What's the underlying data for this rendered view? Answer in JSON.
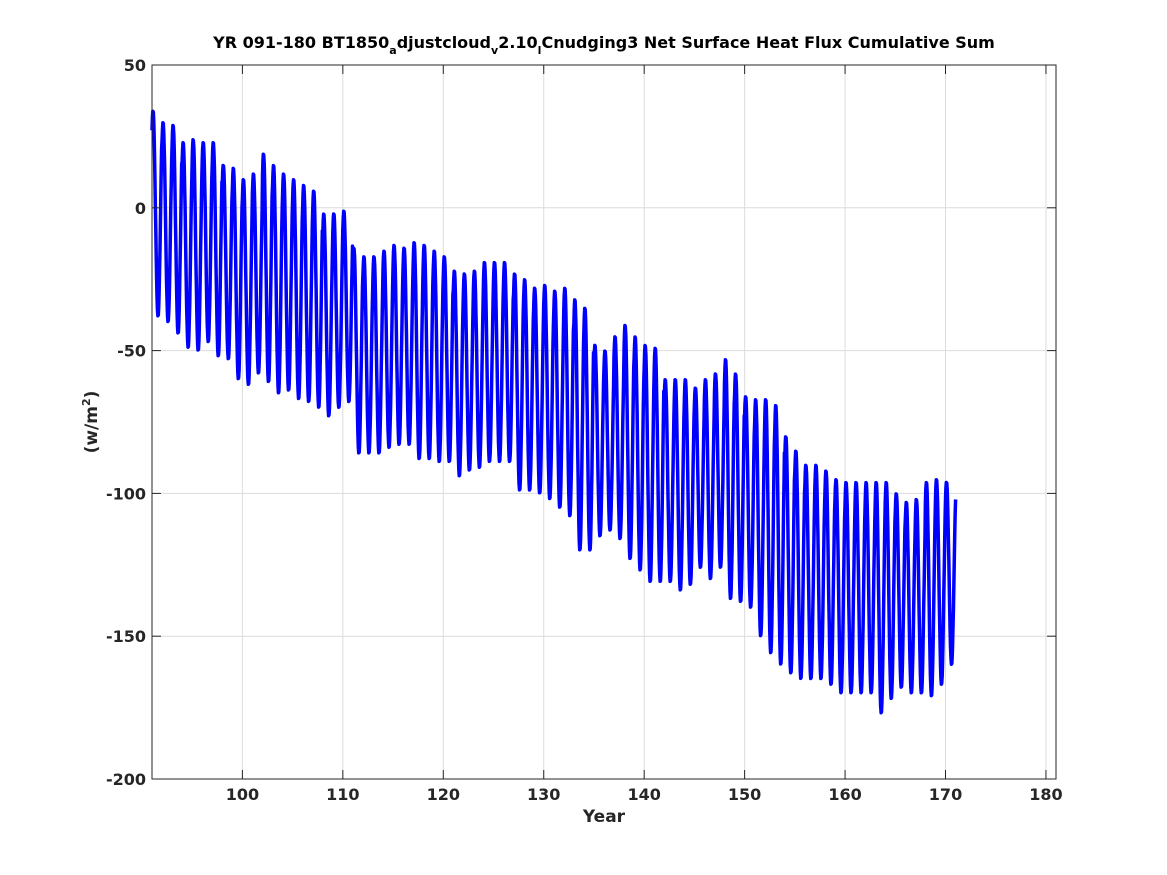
{
  "chart_data": {
    "type": "line",
    "title_parts": {
      "p1": "YR 091-180 BT1850",
      "sub1": "a",
      "p2": "djustcloud",
      "sub2": "v",
      "p3": "2.10",
      "sub3": "l",
      "p4": "Cnudging3 Net Surface Heat Flux  Cumulative Sum"
    },
    "xlabel": "Year",
    "ylabel_parts": {
      "base": "(w/m",
      "sup": "2",
      "end": ")"
    },
    "xlim": [
      91,
      181
    ],
    "ylim": [
      -200,
      50
    ],
    "xticks": [
      100,
      110,
      120,
      130,
      140,
      150,
      160,
      170,
      180
    ],
    "yticks": [
      50,
      0,
      -50,
      -100,
      -150,
      -200
    ],
    "grid": true,
    "line_color": "#0000ff",
    "series": [
      {
        "x_start": 91.0,
        "x_step": 1,
        "annual_cycle_peaks": [
          34,
          30,
          29,
          23,
          24,
          23,
          23,
          15,
          14,
          10,
          12,
          19,
          15,
          12,
          10,
          8,
          6,
          -2,
          -2,
          -1,
          -14,
          -17,
          -17,
          -15,
          -13,
          -14,
          -12,
          -13,
          -15,
          -17,
          -22,
          -23,
          -22,
          -19,
          -19,
          -19,
          -23,
          -25,
          -28,
          -27,
          -29,
          -28,
          -32,
          -35,
          -48,
          -50,
          -45,
          -41,
          -45,
          -48,
          -49,
          -60,
          -60,
          -60,
          -63,
          -60,
          -58,
          -53,
          -58,
          -66,
          -67,
          -67,
          -69,
          -80,
          -85,
          -90,
          -90,
          -92,
          -95,
          -96,
          -96,
          -96,
          -96,
          -96,
          -100,
          -103,
          -102,
          -96,
          -95,
          -96
        ],
        "annual_cycle_troughs": [
          -38,
          -40,
          -44,
          -49,
          -50,
          -47,
          -52,
          -53,
          -60,
          -62,
          -58,
          -61,
          -65,
          -64,
          -67,
          -68,
          -70,
          -73,
          -70,
          -68,
          -86,
          -86,
          -86,
          -84,
          -83,
          -83,
          -88,
          -88,
          -89,
          -89,
          -94,
          -92,
          -91,
          -89,
          -89,
          -89,
          -99,
          -99,
          -100,
          -102,
          -105,
          -108,
          -120,
          -120,
          -115,
          -113,
          -116,
          -123,
          -127,
          -131,
          -131,
          -131,
          -134,
          -132,
          -126,
          -130,
          -126,
          -137,
          -138,
          -140,
          -150,
          -156,
          -160,
          -163,
          -165,
          -165,
          -165,
          -167,
          -170,
          -170,
          -170,
          -170,
          -177,
          -172,
          -168,
          -170,
          -170,
          -171,
          -167,
          -160
        ]
      }
    ]
  }
}
